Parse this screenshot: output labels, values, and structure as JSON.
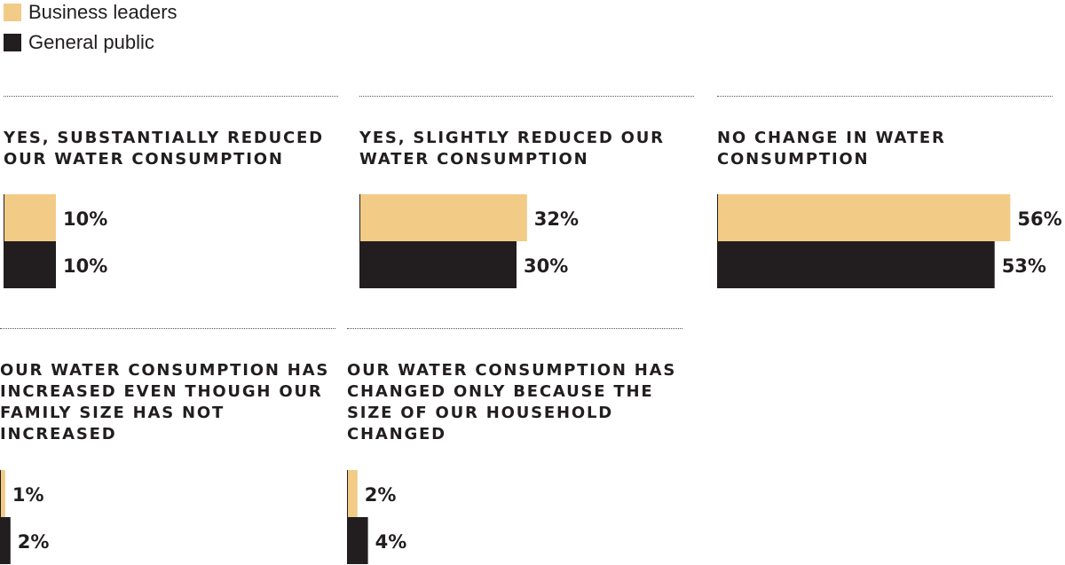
{
  "legend": [
    {
      "label": "Business leaders",
      "color": "#f2cb87"
    },
    {
      "label": "General public",
      "color": "#221e1f"
    }
  ],
  "chart_data": {
    "type": "bar",
    "orientation": "horizontal",
    "series": [
      {
        "name": "Business leaders",
        "color": "#f2cb87"
      },
      {
        "name": "General public",
        "color": "#221e1f"
      }
    ],
    "panels": [
      {
        "title": "Yes, substantially reduced our water consumption",
        "values": [
          10,
          10
        ],
        "labels": [
          "10%",
          "10%"
        ]
      },
      {
        "title": "Yes, slightly reduced our water consumption",
        "values": [
          32,
          30
        ],
        "labels": [
          "32%",
          "30%"
        ]
      },
      {
        "title": "No change in water consumption",
        "values": [
          56,
          53
        ],
        "labels": [
          "56%",
          "53%"
        ]
      },
      {
        "title": "Our water consumption has increased even though our family size has not increased",
        "values": [
          1,
          2
        ],
        "labels": [
          "1%",
          "2%"
        ]
      },
      {
        "title": "Our water consumption has changed only because the size of our household changed",
        "values": [
          2,
          4
        ],
        "labels": [
          "2%",
          "4%"
        ]
      }
    ]
  }
}
